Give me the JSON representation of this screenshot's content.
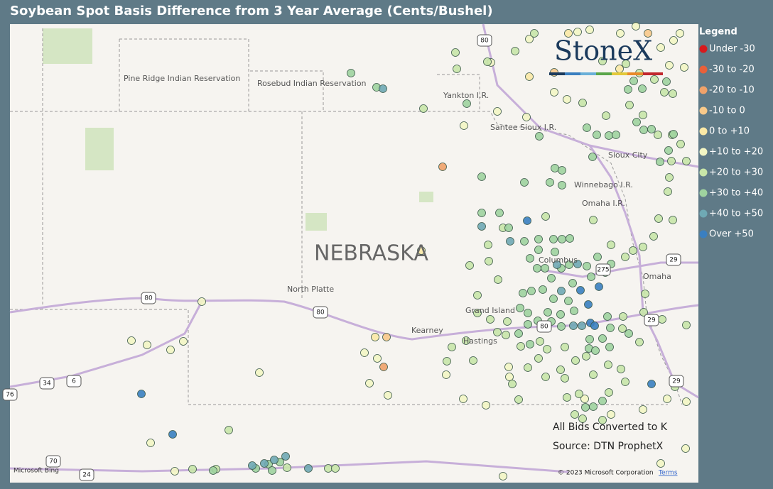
{
  "header": {
    "title": "Soybean Spot Basis Difference from 3 Year Average (Cents/Bushel)"
  },
  "legend": {
    "title": "Legend",
    "items": [
      {
        "label": "Under -30",
        "color": "#d7191c"
      },
      {
        "label": "-30 to -20",
        "color": "#e8603a"
      },
      {
        "label": "-20 to -10",
        "color": "#f0a26a"
      },
      {
        "label": "-10 to 0",
        "color": "#f8c98a"
      },
      {
        "label": "0 to +10",
        "color": "#fbe9a6"
      },
      {
        "label": "+10 to +20",
        "color": "#f3f6c4"
      },
      {
        "label": "+20 to +30",
        "color": "#c8e6a8"
      },
      {
        "label": "+30 to +40",
        "color": "#9fd39f"
      },
      {
        "label": "+40 to +50",
        "color": "#6fa9b4"
      },
      {
        "label": "Over +50",
        "color": "#3a7fc0"
      }
    ]
  },
  "map": {
    "logo": "StoneX",
    "state": "NEBRASKA",
    "places": [
      "Pine Ridge Indian Reservation",
      "Rosebud Indian Reservation",
      "Yankton I.R.",
      "Santee Sioux I.R.",
      "Sioux City",
      "Winnebago I.R.",
      "Omaha I.R.",
      "Columbus",
      "Omaha",
      "North Platte",
      "Grand Island",
      "Kearney",
      "Hastings"
    ],
    "shields": [
      "80",
      "80",
      "80",
      "80",
      "29",
      "29",
      "275",
      "76",
      "34",
      "6",
      "70",
      "24",
      "29"
    ],
    "notes": [
      "All Bids Converted to K",
      "Source: DTN ProphetX"
    ],
    "provider": "Microsoft Bing",
    "copyright": "© 2023 Microsoft Corporation",
    "terms": "Terms"
  }
}
